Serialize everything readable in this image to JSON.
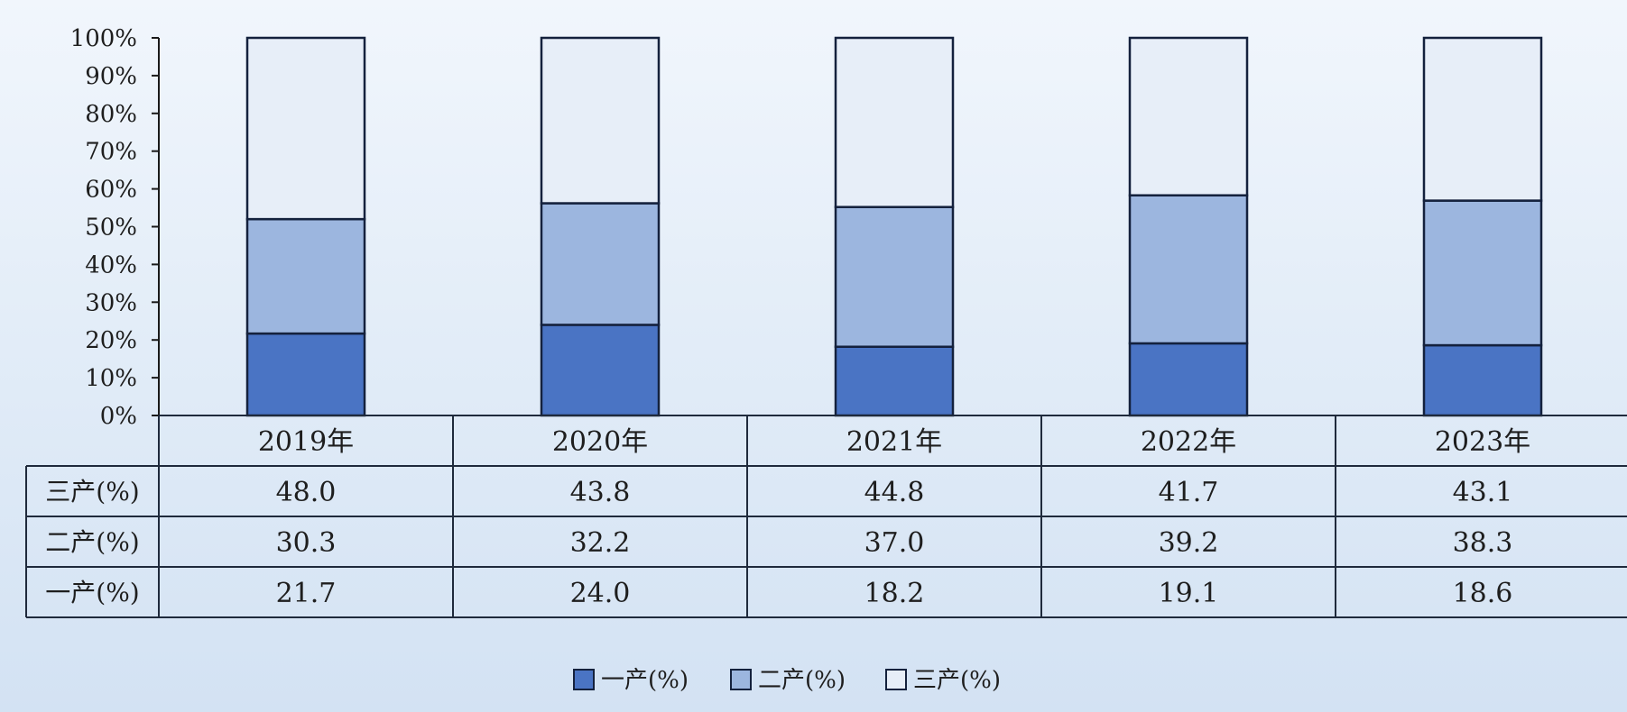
{
  "chart_data": {
    "type": "bar",
    "stacked": true,
    "percent_stacked": true,
    "categories": [
      "2019年",
      "2020年",
      "2021年",
      "2022年",
      "2023年"
    ],
    "series": [
      {
        "name": "一产(%)",
        "values": [
          21.7,
          24.0,
          18.2,
          19.1,
          18.6
        ],
        "color": "#4a74c4"
      },
      {
        "name": "二产(%)",
        "values": [
          30.3,
          32.2,
          37.0,
          39.2,
          38.3
        ],
        "color": "#9cb6df"
      },
      {
        "name": "三产(%)",
        "values": [
          48.0,
          43.8,
          44.8,
          41.7,
          43.1
        ],
        "color": "#e7eef8"
      }
    ],
    "y_ticks": [
      "0%",
      "10%",
      "20%",
      "30%",
      "40%",
      "50%",
      "60%",
      "70%",
      "80%",
      "90%",
      "100%"
    ],
    "ylim": [
      0,
      100
    ],
    "data_table": {
      "rows": [
        {
          "label": "三产(%)",
          "values": [
            "48.0",
            "43.8",
            "44.8",
            "41.7",
            "43.1"
          ]
        },
        {
          "label": "二产(%)",
          "values": [
            "30.3",
            "32.2",
            "37.0",
            "39.2",
            "38.3"
          ]
        },
        {
          "label": "一产(%)",
          "values": [
            "21.7",
            "24.0",
            "18.2",
            "19.1",
            "18.6"
          ]
        }
      ]
    },
    "legend": {
      "position": "bottom",
      "items": [
        "一产(%)",
        "二产(%)",
        "三产(%)"
      ]
    },
    "grid": false
  }
}
